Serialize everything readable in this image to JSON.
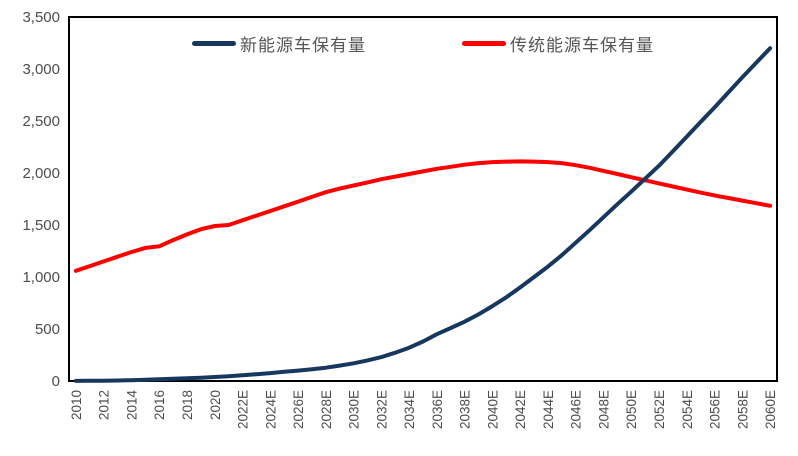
{
  "chart_data": {
    "type": "line",
    "title": "",
    "xlabel": "",
    "ylabel": "",
    "ylim": [
      0,
      3500
    ],
    "grid": false,
    "legend_position": "top-center-inside",
    "x": [
      2010,
      2011,
      2012,
      2013,
      2014,
      2015,
      2016,
      2017,
      2018,
      2019,
      2020,
      2021,
      2022,
      2023,
      2024,
      2025,
      2026,
      2027,
      2028,
      2029,
      2030,
      2031,
      2032,
      2033,
      2034,
      2035,
      2036,
      2037,
      2038,
      2039,
      2040,
      2041,
      2042,
      2043,
      2044,
      2045,
      2046,
      2047,
      2048,
      2049,
      2050,
      2051,
      2052,
      2053,
      2054,
      2055,
      2056,
      2057,
      2058,
      2059,
      2060
    ],
    "x_tick_labels": [
      "2010",
      "2012",
      "2014",
      "2016",
      "2018",
      "2020",
      "2022E",
      "2024E",
      "2026E",
      "2028E",
      "2030E",
      "2032E",
      "2034E",
      "2036E",
      "2038E",
      "2040E",
      "2042E",
      "2044E",
      "2046E",
      "2048E",
      "2050E",
      "2052E",
      "2054E",
      "2056E",
      "2058E",
      "2060E"
    ],
    "y_tick_values": [
      0,
      500,
      1000,
      1500,
      2000,
      2500,
      3000,
      3500
    ],
    "y_tick_labels": [
      "0",
      "500",
      "1,000",
      "1,500",
      "2,000",
      "2,500",
      "3,000",
      "3,500"
    ],
    "series": [
      {
        "name": "新能源车保有量",
        "color": "#17375E",
        "values": [
          1,
          2,
          3,
          5,
          8,
          12,
          16,
          21,
          26,
          32,
          38,
          46,
          55,
          65,
          76,
          88,
          100,
          113,
          128,
          148,
          170,
          198,
          230,
          272,
          320,
          380,
          450,
          510,
          570,
          640,
          720,
          805,
          900,
          1000,
          1100,
          1210,
          1330,
          1450,
          1575,
          1700,
          1820,
          1945,
          2070,
          2210,
          2350,
          2490,
          2630,
          2775,
          2920,
          3060,
          3200
        ]
      },
      {
        "name": "传统能源车保有量",
        "color": "#FF0000",
        "values": [
          1060,
          1105,
          1150,
          1195,
          1240,
          1280,
          1295,
          1355,
          1410,
          1460,
          1490,
          1500,
          1545,
          1590,
          1635,
          1680,
          1725,
          1770,
          1815,
          1850,
          1880,
          1910,
          1940,
          1965,
          1990,
          2015,
          2040,
          2060,
          2080,
          2095,
          2105,
          2110,
          2112,
          2110,
          2105,
          2095,
          2075,
          2050,
          2020,
          1990,
          1960,
          1930,
          1900,
          1870,
          1840,
          1812,
          1785,
          1760,
          1735,
          1710,
          1685
        ]
      }
    ]
  },
  "colors": {
    "axis_border": "#000000",
    "tick_text": "#4D4D4D",
    "legend_text": "#555555",
    "background": "#FFFFFF"
  }
}
